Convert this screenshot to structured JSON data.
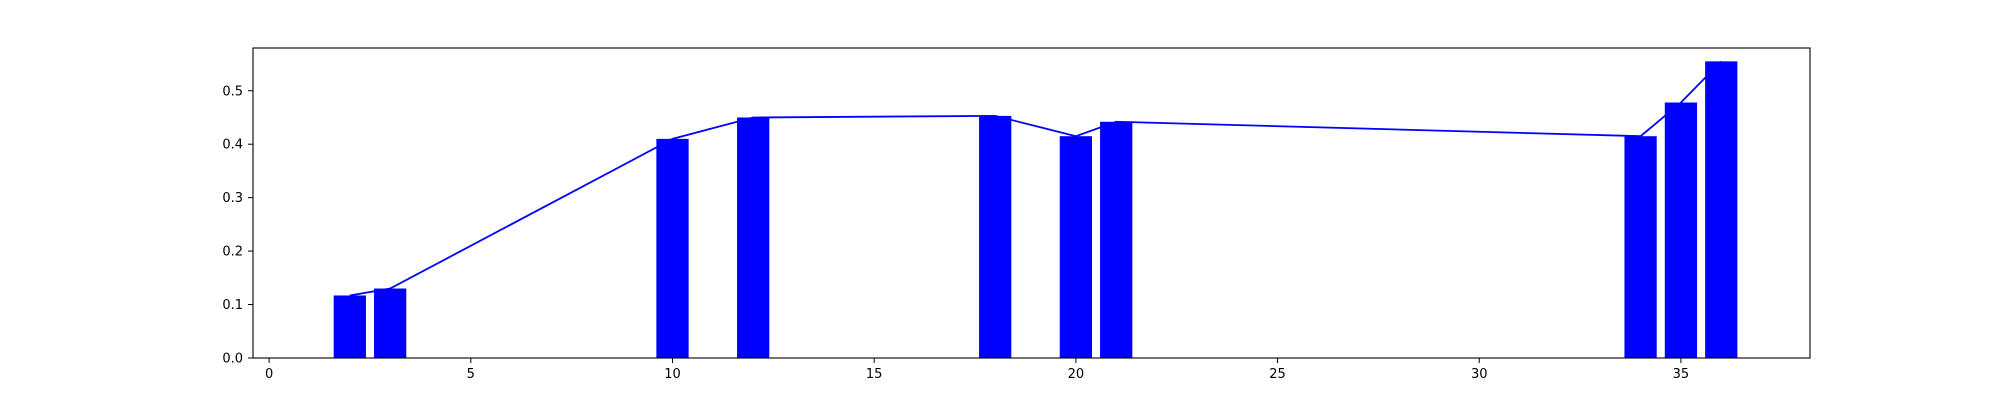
{
  "chart_data": {
    "type": "bar",
    "x": [
      2,
      3,
      10,
      12,
      18,
      20,
      21,
      34,
      35,
      36
    ],
    "values": [
      0.117,
      0.13,
      0.41,
      0.45,
      0.453,
      0.415,
      0.442,
      0.415,
      0.478,
      0.555
    ],
    "line_overlay": true,
    "title": "",
    "xlabel": "",
    "ylabel": "",
    "xlim": [
      -0.4,
      38.2
    ],
    "ylim": [
      0,
      0.58
    ],
    "xticks": [
      0,
      5,
      10,
      15,
      20,
      25,
      30,
      35
    ],
    "yticks": [
      0.0,
      0.1,
      0.2,
      0.3,
      0.4,
      0.5
    ],
    "bar_color": "#0000ff",
    "line_color": "#0000ff",
    "grid": false
  }
}
